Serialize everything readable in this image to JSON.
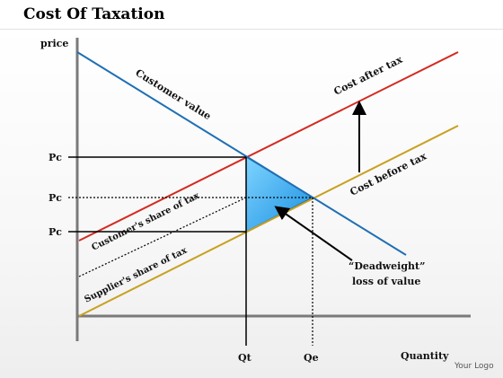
{
  "header": {
    "title": "Cost Of Taxation"
  },
  "diagram": {
    "y_axis_label": "price",
    "x_axis_label": "Quantity",
    "footer_text": "Your Logo",
    "price_labels": [
      "Pc",
      "Pc",
      "Pc"
    ],
    "qty_labels": [
      "Qt",
      "Qe"
    ],
    "line_labels": {
      "customer_value": "Customer value",
      "cost_after_tax": "Cost after tax",
      "cost_before_tax": "Cost before tax",
      "customer_share": "Customer's share of tax",
      "supplier_share": "Supplier's share of tax"
    },
    "deadweight": [
      "“Deadweight”",
      "loss of value"
    ],
    "colors": {
      "demand": "#1f6fb5",
      "supply_after_tax": "#d42a20",
      "supply_before_tax": "#c9a020",
      "deadweight_fill": "#22a8ee"
    }
  }
}
